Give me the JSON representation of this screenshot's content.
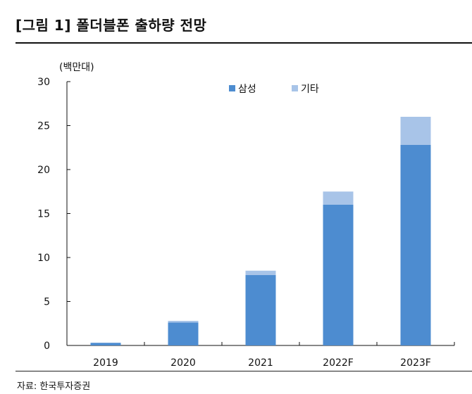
{
  "figure": {
    "title": "[그림 1] 폴더블폰 출하량 전망",
    "source": "자료: 한국투자증권"
  },
  "chart_data": {
    "type": "bar",
    "stacked": true,
    "ylabel": "(백만대)",
    "ylim": [
      0,
      30
    ],
    "yticks": [
      0,
      5,
      10,
      15,
      20,
      25,
      30
    ],
    "categories": [
      "2019",
      "2020",
      "2021",
      "2022F",
      "2023F"
    ],
    "series": [
      {
        "name": "삼성",
        "color": "#4d8cd0",
        "values": [
          0.3,
          2.6,
          8.0,
          16.0,
          22.8
        ]
      },
      {
        "name": "기타",
        "color": "#a8c4e8",
        "values": [
          0.0,
          0.2,
          0.5,
          1.5,
          3.2
        ]
      }
    ],
    "legend_position": "top-center",
    "grid": false
  }
}
